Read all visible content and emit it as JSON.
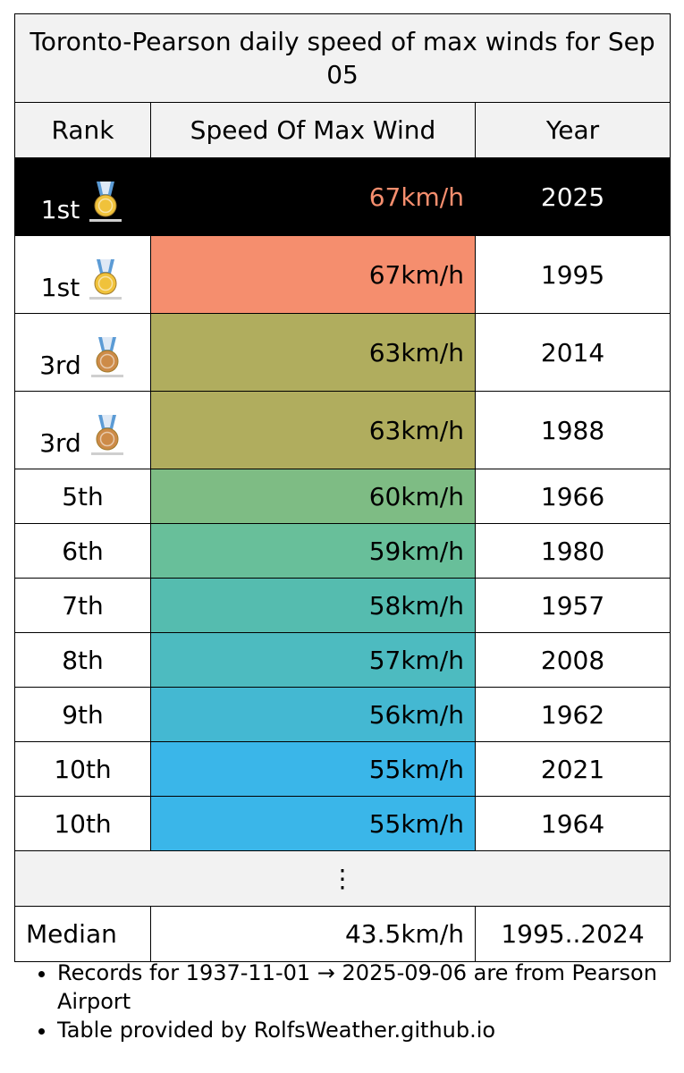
{
  "title": "Toronto-Pearson daily speed of max winds for Sep 05",
  "headers": {
    "rank": "Rank",
    "speed": "Speed Of Max Wind",
    "year": "Year"
  },
  "rows": [
    {
      "rank": "1st",
      "speed": "67km/h",
      "year": "2025",
      "medal": "gold",
      "bg": "#000000",
      "fg": "#f58e6e"
    },
    {
      "rank": "1st",
      "speed": "67km/h",
      "year": "1995",
      "medal": "gold",
      "bg": "#f58e6e",
      "fg": "#000000"
    },
    {
      "rank": "3rd",
      "speed": "63km/h",
      "year": "2014",
      "medal": "bronze",
      "bg": "#b0ad5e",
      "fg": "#000000"
    },
    {
      "rank": "3rd",
      "speed": "63km/h",
      "year": "1988",
      "medal": "bronze",
      "bg": "#b0ad5e",
      "fg": "#000000"
    },
    {
      "rank": "5th",
      "speed": "60km/h",
      "year": "1966",
      "medal": "",
      "bg": "#7ebc84",
      "fg": "#000000"
    },
    {
      "rank": "6th",
      "speed": "59km/h",
      "year": "1980",
      "medal": "",
      "bg": "#68bf9a",
      "fg": "#000000"
    },
    {
      "rank": "7th",
      "speed": "58km/h",
      "year": "1957",
      "medal": "",
      "bg": "#55bcaf",
      "fg": "#000000"
    },
    {
      "rank": "8th",
      "speed": "57km/h",
      "year": "2008",
      "medal": "",
      "bg": "#4dbbc0",
      "fg": "#000000"
    },
    {
      "rank": "9th",
      "speed": "56km/h",
      "year": "1962",
      "medal": "",
      "bg": "#44b8d2",
      "fg": "#000000"
    },
    {
      "rank": "10th",
      "speed": "55km/h",
      "year": "2021",
      "medal": "",
      "bg": "#3ab6e9",
      "fg": "#000000"
    },
    {
      "rank": "10th",
      "speed": "55km/h",
      "year": "1964",
      "medal": "",
      "bg": "#3ab6e9",
      "fg": "#000000"
    }
  ],
  "ellipsis": "⋮",
  "median": {
    "label": "Median",
    "speed": "43.5km/h",
    "year": "1995..2024"
  },
  "notes": [
    "Records for 1937-11-01 → 2025-09-06 are from Pearson Airport",
    "Table provided by RolfsWeather.github.io"
  ],
  "medal_colors": {
    "gold": "#f0c23b",
    "bronze": "#cd8b48",
    "ribbon": "#5b9bd5"
  }
}
